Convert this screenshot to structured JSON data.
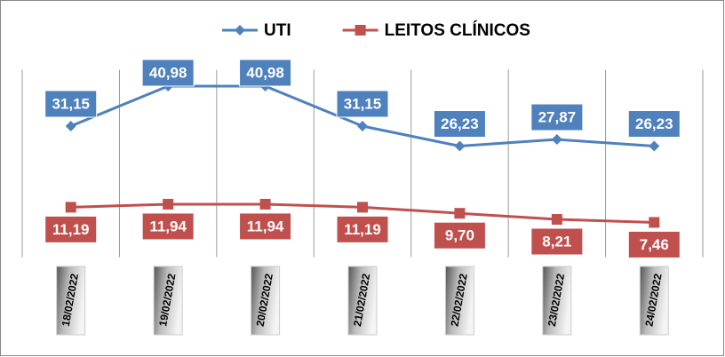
{
  "chart_data": {
    "type": "line",
    "categories": [
      "18/02/2022",
      "19/02/2022",
      "20/02/2022",
      "21/02/2022",
      "22/02/2022",
      "23/02/2022",
      "24/02/2022"
    ],
    "series": [
      {
        "name": "UTI",
        "color": "#4f81bd",
        "marker": "diamond",
        "label_position": "above",
        "values": [
          31.15,
          40.98,
          40.98,
          31.15,
          26.23,
          27.87,
          26.23
        ],
        "value_labels": [
          "31,15",
          "40,98",
          "40,98",
          "31,15",
          "26,23",
          "27,87",
          "26,23"
        ]
      },
      {
        "name": "LEITOS CLÍNICOS",
        "color": "#c0504d",
        "marker": "square",
        "label_position": "below",
        "values": [
          11.19,
          11.94,
          11.94,
          11.19,
          9.7,
          8.21,
          7.46
        ],
        "value_labels": [
          "11,19",
          "11,94",
          "11,94",
          "11,19",
          "9,70",
          "8,21",
          "7,46"
        ]
      }
    ],
    "ylim": [
      0,
      45
    ],
    "grid": "vertical",
    "legend": "top"
  }
}
